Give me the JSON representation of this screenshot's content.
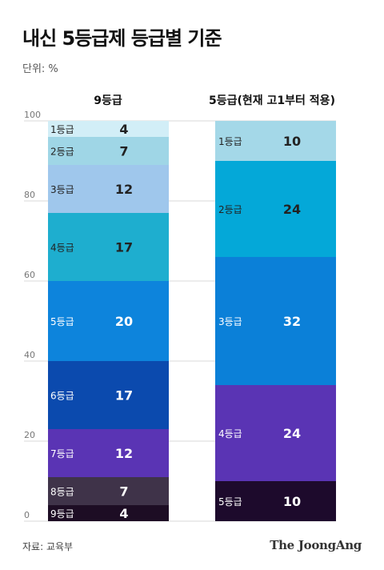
{
  "title": "내신 5등급제 등급별 기준",
  "unit_label": "단위: %",
  "source": "자료: 교육부",
  "brand": "The JoongAng",
  "chart_data": [
    {
      "type": "bar",
      "stacked": true,
      "title": "9등급",
      "ylim": [
        0,
        100
      ],
      "yticks": [
        0,
        20,
        40,
        60,
        80,
        100
      ],
      "grid": true,
      "categories": [
        "1등급",
        "2등급",
        "3등급",
        "4등급",
        "5등급",
        "6등급",
        "7등급",
        "8등급",
        "9등급"
      ],
      "values": [
        4,
        7,
        12,
        17,
        20,
        17,
        12,
        7,
        4
      ],
      "colors": [
        "#d2eef7",
        "#9fd6e6",
        "#9fc7ec",
        "#1eaecf",
        "#0d84dc",
        "#0b4aae",
        "#5a34b4",
        "#3f3349",
        "#1d0d24"
      ],
      "label_colors": [
        "#222222",
        "#222222",
        "#222222",
        "#222222",
        "#ffffff",
        "#ffffff",
        "#ffffff",
        "#ffffff",
        "#ffffff"
      ]
    },
    {
      "type": "bar",
      "stacked": true,
      "title": "5등급(현재 고1부터 적용)",
      "ylim": [
        0,
        100
      ],
      "categories": [
        "1등급",
        "2등급",
        "3등급",
        "4등급",
        "5등급"
      ],
      "values": [
        10,
        24,
        32,
        24,
        10
      ],
      "colors": [
        "#a4d8e8",
        "#04a8d8",
        "#0b80d8",
        "#5a34b4",
        "#1d0a2c"
      ],
      "label_colors": [
        "#222222",
        "#222222",
        "#ffffff",
        "#ffffff",
        "#ffffff"
      ]
    }
  ]
}
